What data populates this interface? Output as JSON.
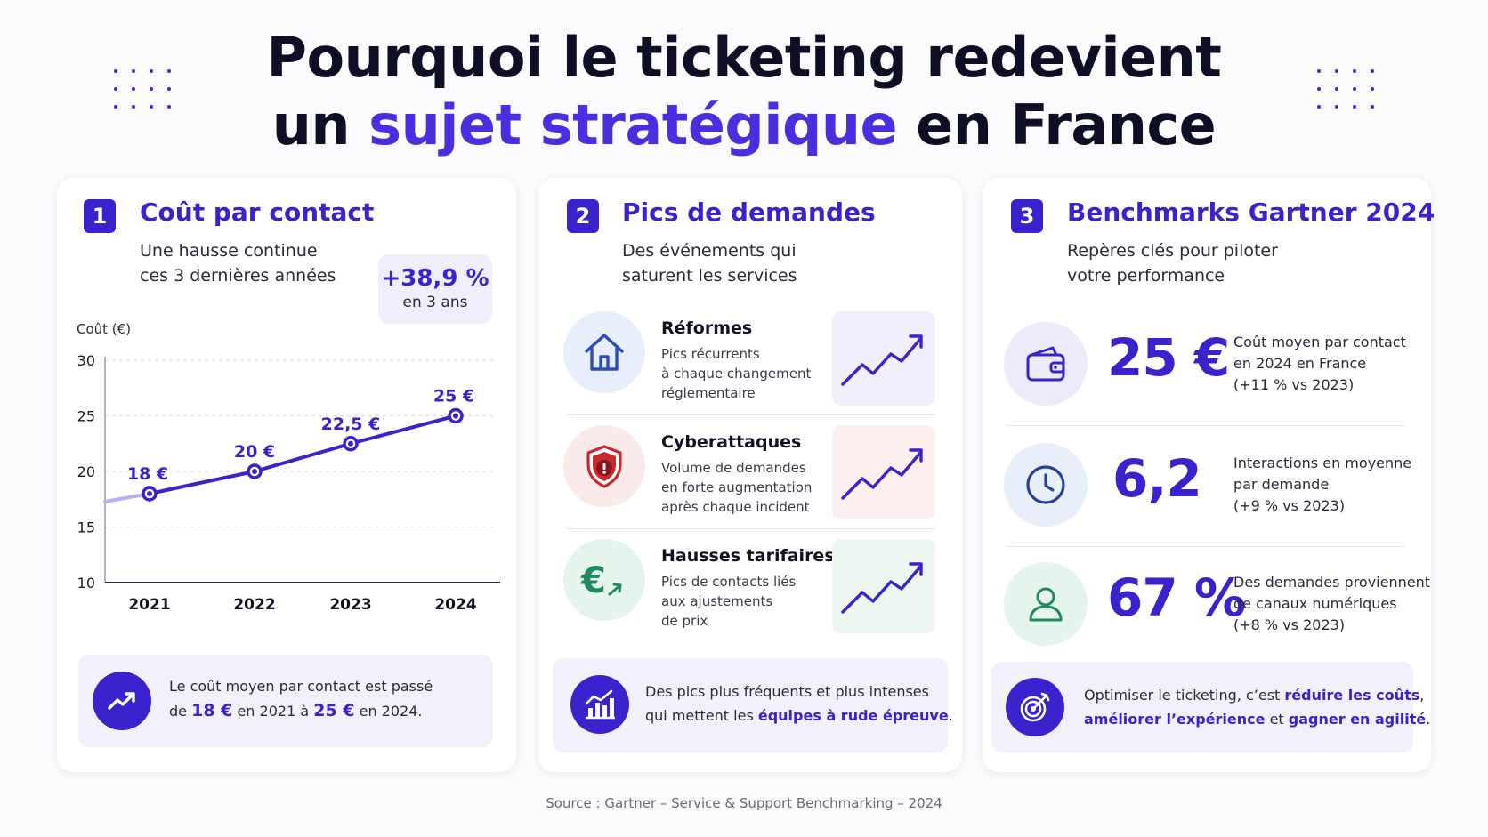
{
  "header": {
    "title_line1": "Pourquoi le ticketing redevient",
    "title_line2_pre": "un ",
    "title_line2_highlight": "sujet stratégique",
    "title_line2_post": " en France"
  },
  "card1": {
    "number": "1",
    "title": "Coût par contact",
    "subtitle_line1": "Une hausse continue",
    "subtitle_line2": "ces 3 dernières années",
    "badge_value": "+38,9 %",
    "badge_label": "en 3 ans",
    "bottom_line1": "Le coût moyen par contact est passé",
    "bottom_pre": "de ",
    "bottom_v1": "18 €",
    "bottom_mid1": " en 2021 à ",
    "bottom_v2": "25 €",
    "bottom_post": " en 2024.",
    "icon": "trend-up-icon"
  },
  "chart_data": {
    "type": "line",
    "ylabel": "Coût (€)",
    "ylim": [
      10,
      30
    ],
    "yticks": [
      "30",
      "25",
      "20",
      "15",
      "10"
    ],
    "categories": [
      "2021",
      "2022",
      "2023",
      "2024"
    ],
    "values": [
      18,
      20,
      22.5,
      25
    ],
    "data_labels": [
      "18 €",
      "20 €",
      "22,5 €",
      "25 €"
    ],
    "grid": true,
    "color": "#3a22cc"
  },
  "card2": {
    "number": "2",
    "title": "Pics de demandes",
    "subtitle_line1": "Des événements qui",
    "subtitle_line2": "saturent les services",
    "items": [
      {
        "title": "Réformes",
        "desc1": "Pics récurrents",
        "desc2": "à chaque changement",
        "desc3": "réglementaire",
        "icon": "house-icon",
        "color": "#2b4fb8"
      },
      {
        "title": "Cyberattaques",
        "desc1": "Volume de demandes",
        "desc2": "en forte augmentation",
        "desc3": "après chaque incident",
        "icon": "shield-alert-icon",
        "color": "#c8282e"
      },
      {
        "title": "Hausses tarifaires",
        "desc1": "Pics de contacts liés",
        "desc2": "aux ajustements",
        "desc3": "de prix",
        "icon": "euro-icon",
        "color": "#1f8a5e"
      }
    ],
    "bottom_line1": "Des pics plus fréquents et plus intenses",
    "bottom_pre": "qui mettent les ",
    "bottom_highlight": "équipes à rude épreuve",
    "bottom_post": ".",
    "icon": "bar-chart-icon"
  },
  "card3": {
    "number": "3",
    "title": "Benchmarks Gartner 2024",
    "subtitle_line1": "Repères clés pour piloter",
    "subtitle_line2": "votre performance",
    "stats": [
      {
        "value": "25 €",
        "desc1": "Coût moyen par contact",
        "desc2": "en 2024 en France",
        "desc3": "(+11 % vs 2023)",
        "icon": "wallet-icon"
      },
      {
        "value": "6,2",
        "desc1": "Interactions en moyenne",
        "desc2": "par demande",
        "desc3": "(+9 % vs 2023)",
        "icon": "clock-icon"
      },
      {
        "value": "67 %",
        "desc1": "Des demandes proviennent",
        "desc2": "de canaux numériques",
        "desc3": "(+8 % vs 2023)",
        "icon": "user-icon"
      }
    ],
    "bottom_pre": "Optimiser le ticketing, c’est ",
    "bottom_h1": "réduire les coûts",
    "bottom_sep1": ",",
    "bottom_h2": "améliorer l’expérience",
    "bottom_mid": " et ",
    "bottom_h3": "gagner en agilité",
    "bottom_post": ".",
    "icon": "target-icon"
  },
  "footer": {
    "source": "Source : Gartner – Service & Support Benchmarking – 2024"
  }
}
